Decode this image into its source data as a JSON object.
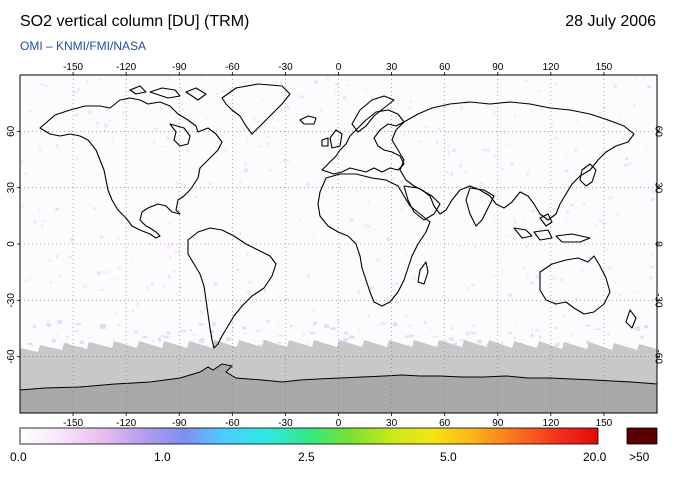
{
  "header": {
    "title": "SO2 vertical column [DU] (TRM)",
    "date": "28 July 2006",
    "credit": "OMI  –  KNMI/FMI/NASA"
  },
  "map": {
    "projection": "equirectangular",
    "lon_range": [
      -180,
      180
    ],
    "lat_range": [
      -90,
      90
    ],
    "lon_ticks": [
      "-150",
      "-120",
      "-90",
      "-60",
      "-30",
      "0",
      "30",
      "60",
      "90",
      "120",
      "150"
    ],
    "lat_ticks": [
      "60",
      "30",
      "0",
      "-30",
      "-60"
    ],
    "grid": true,
    "no_data_color": "#c8c8c8",
    "land_ice_color": "#a9a9a9",
    "coastline_color": "#000000"
  },
  "colorbar": {
    "labels": [
      "0.0",
      "1.0",
      "2.5",
      "5.0",
      "20.0"
    ],
    "overflow_label": ">50",
    "overflow_color": "#5a0000",
    "stops": [
      "#ffffff",
      "#f6e6f8",
      "#e9bdf0",
      "#b39fef",
      "#7f8ff0",
      "#49d0ff",
      "#2fe9e0",
      "#34e884",
      "#7be032",
      "#c7ea1c",
      "#f3e414",
      "#fcb21a",
      "#f9731e",
      "#f2341d",
      "#e00a0a"
    ]
  }
}
